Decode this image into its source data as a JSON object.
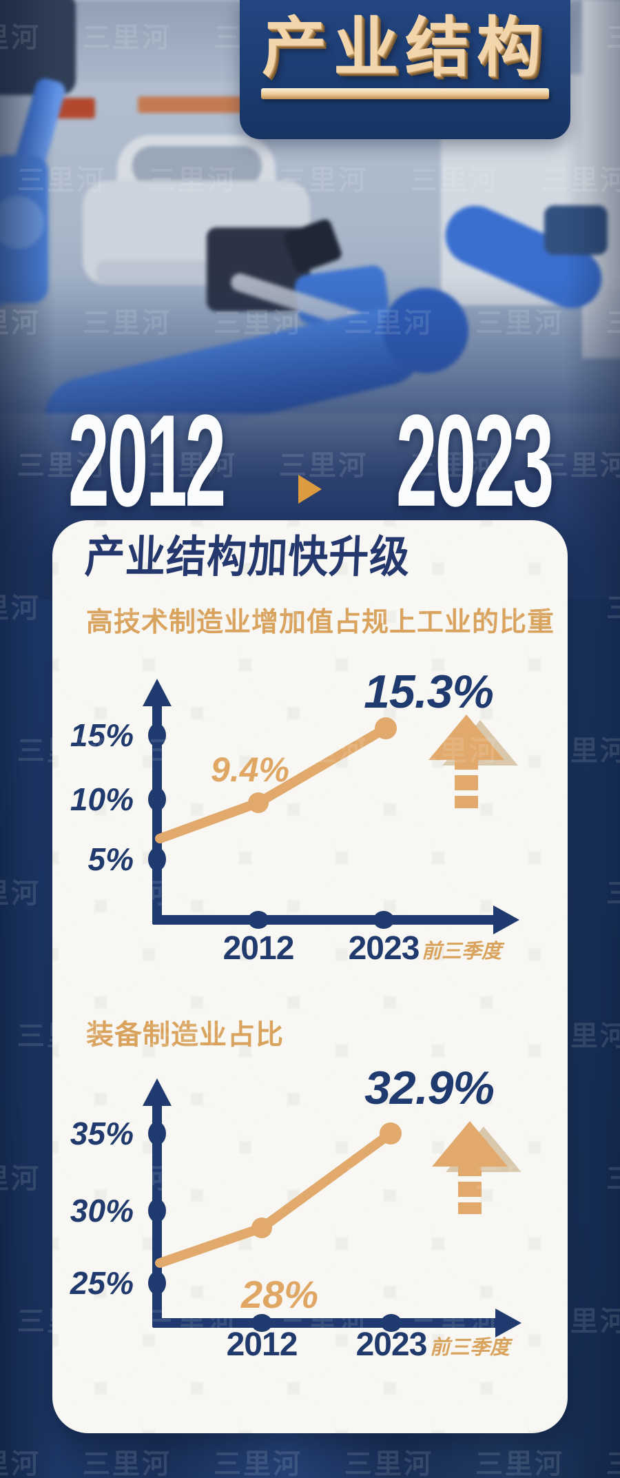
{
  "page": {
    "watermark": "三里河"
  },
  "header": {
    "title": "产业结构"
  },
  "banner": {
    "year_from": "2012",
    "year_to": "2023"
  },
  "card": {
    "heading": "产业结构加快升级"
  },
  "chart_data": [
    {
      "type": "line",
      "title": "高技术制造业增加值占规上工业的比重",
      "categories": [
        "2012",
        "2023"
      ],
      "x_suffix": "前三季度",
      "values": [
        9.4,
        15.3
      ],
      "value_labels": [
        "9.4%",
        "15.3%"
      ],
      "yticks": [
        "5%",
        "10%",
        "15%"
      ],
      "ylim": [
        0,
        18
      ],
      "unit": "%",
      "trend": "up",
      "grid": false,
      "legend_position": "none",
      "line_color": "#e2a96c",
      "axis_color": "#1e3a6e"
    },
    {
      "type": "line",
      "title": "装备制造业占比",
      "categories": [
        "2012",
        "2023"
      ],
      "x_suffix": "前三季度",
      "values": [
        28,
        32.9
      ],
      "value_labels": [
        "28%",
        "32.9%"
      ],
      "yticks": [
        "25%",
        "30%",
        "35%"
      ],
      "ylim": [
        22,
        37
      ],
      "unit": "%",
      "trend": "up",
      "grid": false,
      "legend_position": "none",
      "line_color": "#e2a96c",
      "axis_color": "#1e3a6e"
    }
  ]
}
